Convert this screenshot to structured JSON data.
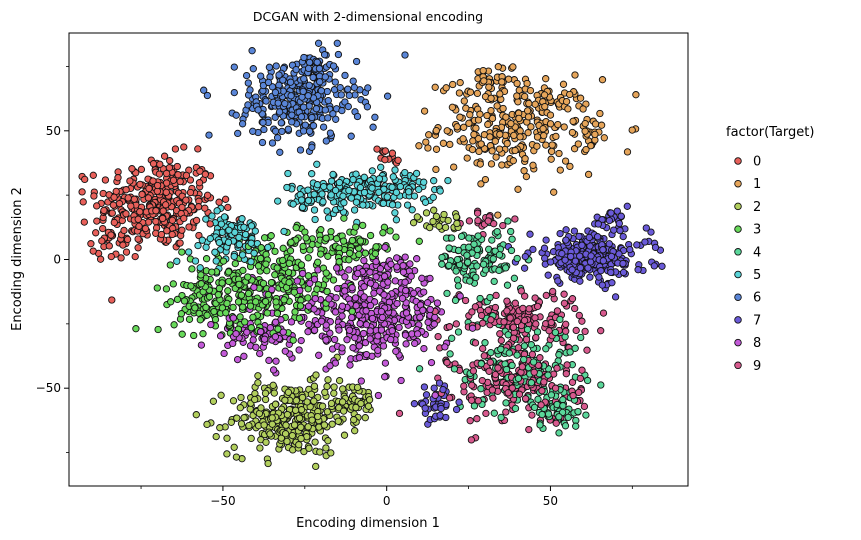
{
  "chart_data": {
    "type": "scatter",
    "title": "DCGAN with 2-dimensional encoding",
    "xlabel": "Encoding dimension 1",
    "ylabel": "Encoding dimension 2",
    "xlim": [
      -97,
      92
    ],
    "ylim": [
      -88,
      88
    ],
    "x_ticks": [
      -50,
      0,
      50
    ],
    "y_ticks": [
      -50,
      0,
      50
    ],
    "x_tick_labels": [
      "−50",
      "0",
      "50"
    ],
    "y_tick_labels": [
      "−50",
      "0",
      "50"
    ],
    "x_minor_ticks": [
      -75,
      -25,
      25,
      75
    ],
    "y_minor_ticks": [
      -75,
      -25,
      25,
      75
    ],
    "grid": false,
    "legend_title": "factor(Target)",
    "legend_position": "right",
    "series": [
      {
        "name": "0",
        "color": "#e8605a",
        "clusters": [
          {
            "cx": -70,
            "cy": 22,
            "sx": 9,
            "sy": 9,
            "n": 320
          },
          {
            "cx": -84,
            "cy": 8,
            "sx": 3,
            "sy": 4,
            "n": 30
          },
          {
            "cx": 0,
            "cy": 40,
            "sx": 2,
            "sy": 2,
            "n": 12
          }
        ]
      },
      {
        "name": "1",
        "color": "#e6a55a",
        "clusters": [
          {
            "cx": 40,
            "cy": 52,
            "sx": 12,
            "sy": 9,
            "n": 300
          },
          {
            "cx": 30,
            "cy": 68,
            "sx": 4,
            "sy": 4,
            "n": 30
          },
          {
            "cx": 62,
            "cy": 50,
            "sx": 2,
            "sy": 3,
            "n": 15
          }
        ]
      },
      {
        "name": "2",
        "color": "#b2cf5d",
        "clusters": [
          {
            "cx": -30,
            "cy": -62,
            "sx": 9,
            "sy": 7,
            "n": 280
          },
          {
            "cx": -12,
            "cy": -55,
            "sx": 5,
            "sy": 4,
            "n": 60
          },
          {
            "cx": 18,
            "cy": 15,
            "sx": 6,
            "sy": 2,
            "n": 25
          }
        ]
      },
      {
        "name": "3",
        "color": "#68d95a",
        "clusters": [
          {
            "cx": -38,
            "cy": -10,
            "sx": 12,
            "sy": 8,
            "n": 300
          },
          {
            "cx": -15,
            "cy": 6,
            "sx": 10,
            "sy": 4,
            "n": 100
          },
          {
            "cx": -55,
            "cy": -18,
            "sx": 5,
            "sy": 5,
            "n": 60
          }
        ]
      },
      {
        "name": "4",
        "color": "#5ad79a",
        "clusters": [
          {
            "cx": 28,
            "cy": 0,
            "sx": 6,
            "sy": 6,
            "n": 120
          },
          {
            "cx": 40,
            "cy": -40,
            "sx": 10,
            "sy": 10,
            "n": 150
          },
          {
            "cx": 52,
            "cy": -58,
            "sx": 4,
            "sy": 4,
            "n": 50
          }
        ]
      },
      {
        "name": "5",
        "color": "#5ad4d8",
        "clusters": [
          {
            "cx": -10,
            "cy": 26,
            "sx": 10,
            "sy": 4,
            "n": 200
          },
          {
            "cx": -48,
            "cy": 8,
            "sx": 6,
            "sy": 5,
            "n": 100
          },
          {
            "cx": 5,
            "cy": 30,
            "sx": 6,
            "sy": 3,
            "n": 40
          }
        ]
      },
      {
        "name": "6",
        "color": "#5a86d8",
        "clusters": [
          {
            "cx": -27,
            "cy": 62,
            "sx": 9,
            "sy": 8,
            "n": 320
          },
          {
            "cx": -22,
            "cy": 75,
            "sx": 4,
            "sy": 3,
            "n": 30
          }
        ]
      },
      {
        "name": "7",
        "color": "#6a5ad8",
        "clusters": [
          {
            "cx": 62,
            "cy": 1,
            "sx": 9,
            "sy": 5,
            "n": 260
          },
          {
            "cx": 15,
            "cy": -56,
            "sx": 3,
            "sy": 3,
            "n": 40
          },
          {
            "cx": 68,
            "cy": 15,
            "sx": 3,
            "sy": 2,
            "n": 20
          }
        ]
      },
      {
        "name": "8",
        "color": "#c35ad8",
        "clusters": [
          {
            "cx": -5,
            "cy": -22,
            "sx": 12,
            "sy": 9,
            "n": 400
          },
          {
            "cx": -40,
            "cy": -30,
            "sx": 6,
            "sy": 4,
            "n": 60
          },
          {
            "cx": 0,
            "cy": -5,
            "sx": 4,
            "sy": 4,
            "n": 40
          }
        ]
      },
      {
        "name": "9",
        "color": "#d85a8e",
        "clusters": [
          {
            "cx": 40,
            "cy": -22,
            "sx": 10,
            "sy": 5,
            "n": 140
          },
          {
            "cx": 40,
            "cy": -48,
            "sx": 10,
            "sy": 8,
            "n": 180
          },
          {
            "cx": 30,
            "cy": 15,
            "sx": 3,
            "sy": 2,
            "n": 20
          }
        ]
      }
    ]
  }
}
